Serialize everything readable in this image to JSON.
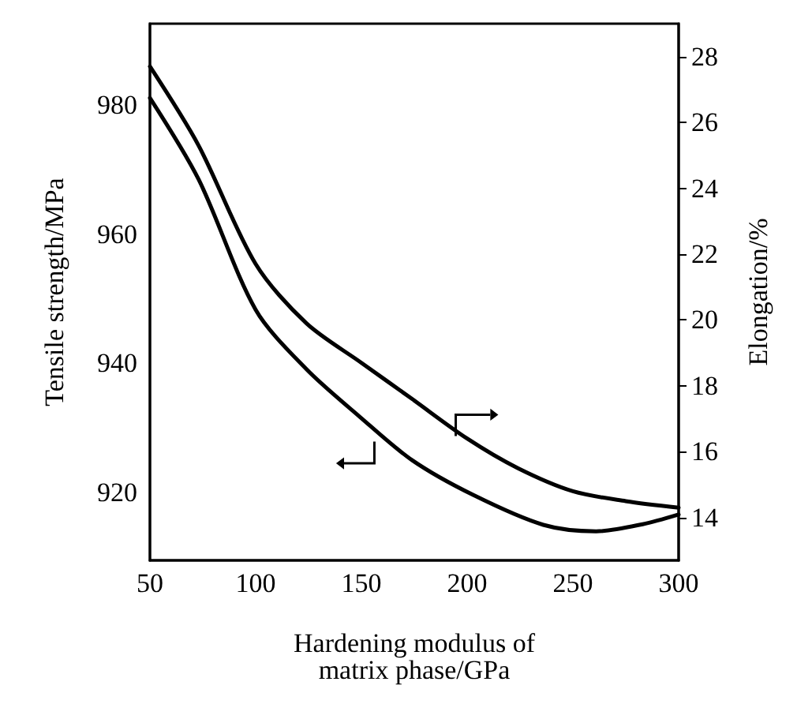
{
  "chart_data": {
    "type": "line",
    "xlabel": "Hardening modulus of\nmatrix phase/GPa",
    "ylabel": "Tensile strength/MPa",
    "y2label": "Elongation/%",
    "xlim": [
      50,
      300
    ],
    "xticks": [
      50,
      100,
      150,
      200,
      250,
      300
    ],
    "ylim": [
      909.5,
      992.6
    ],
    "yticks": [
      920,
      940,
      960,
      980
    ],
    "y2lim": [
      12.7,
      29
    ],
    "y2ticks": [
      14,
      16,
      18,
      20,
      22,
      24,
      26,
      28
    ],
    "grid": false,
    "marker": "none",
    "line_style": "solid",
    "series": [
      {
        "color": "#000000",
        "x": [
          50,
          73,
          100,
          124,
          149,
          174,
          203,
          236,
          261,
          283,
          300
        ],
        "values": [
          981.1,
          968.5,
          948.3,
          939.1,
          931.8,
          925,
          919.6,
          915,
          914,
          915.1,
          916.6
        ]
      },
      {
        "color": "#000000",
        "axis": "y2",
        "x": [
          50,
          73,
          100,
          124,
          150,
          174,
          200,
          224,
          250,
          275,
          300
        ],
        "values": [
          27.7,
          25.3,
          21.7,
          19.9,
          18.7,
          17.6,
          16.4,
          15.5,
          14.8,
          14.5,
          14.3
        ]
      }
    ]
  }
}
